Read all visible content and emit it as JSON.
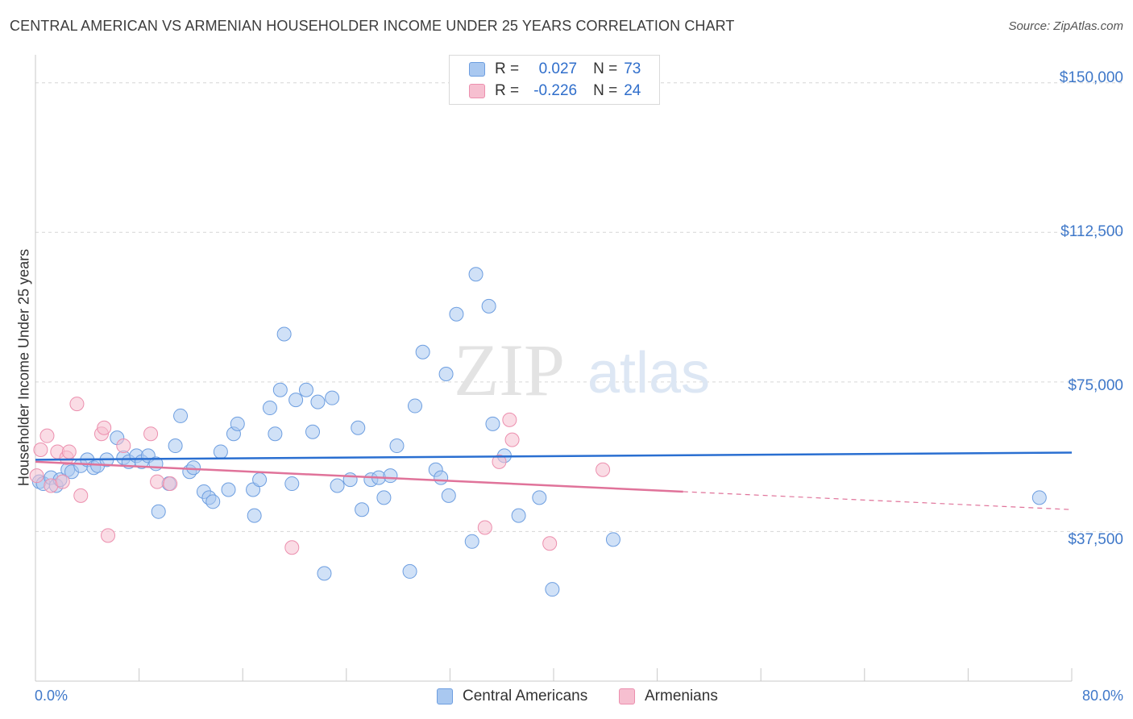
{
  "header": {
    "title": "CENTRAL AMERICAN VS ARMENIAN HOUSEHOLDER INCOME UNDER 25 YEARS CORRELATION CHART",
    "source": "Source: ZipAtlas.com"
  },
  "watermark": {
    "zip": "ZIP",
    "atlas": "atlas"
  },
  "legend": {
    "series": [
      {
        "r_label": "R =",
        "r_value": "0.027",
        "n_label": "N =",
        "n_value": "73"
      },
      {
        "r_label": "R =",
        "r_value": "-0.226",
        "n_label": "N =",
        "n_value": "24"
      }
    ]
  },
  "bottom_legend": {
    "central": "Central Americans",
    "armenian": "Armenians"
  },
  "colors": {
    "central_fill": "#a9c8f0",
    "central_stroke": "#6d9ee0",
    "central_line": "#2a6fd1",
    "armenian_fill": "#f6bfd0",
    "armenian_stroke": "#ec8fae",
    "armenian_line": "#e0739a",
    "axis_text": "#3f78c9",
    "grid": "#d6d6d6"
  },
  "chart_data": {
    "type": "scatter",
    "title": "CENTRAL AMERICAN VS ARMENIAN HOUSEHOLDER INCOME UNDER 25 YEARS CORRELATION CHART",
    "xlabel": "",
    "ylabel": "Householder Income Under 25 years",
    "xlim": [
      0,
      80
    ],
    "ylim": [
      0,
      155000
    ],
    "x_tick_labels": [
      "0.0%",
      "80.0%"
    ],
    "y_ticks": [
      37500,
      75000,
      112500,
      150000
    ],
    "y_tick_labels": [
      "$37,500",
      "$75,000",
      "$112,500",
      "$150,000"
    ],
    "grid": true,
    "series": [
      {
        "name": "Central Americans",
        "points": [
          [
            0.3,
            50000
          ],
          [
            0.6,
            49500
          ],
          [
            1.2,
            51000
          ],
          [
            1.6,
            49000
          ],
          [
            1.9,
            50500
          ],
          [
            2.5,
            53000
          ],
          [
            2.8,
            52500
          ],
          [
            3.5,
            54000
          ],
          [
            4.0,
            55500
          ],
          [
            4.5,
            53500
          ],
          [
            4.8,
            54000
          ],
          [
            5.5,
            55500
          ],
          [
            6.3,
            61000
          ],
          [
            6.8,
            56000
          ],
          [
            7.2,
            55000
          ],
          [
            7.8,
            56500
          ],
          [
            8.2,
            55000
          ],
          [
            8.7,
            56500
          ],
          [
            9.3,
            54500
          ],
          [
            9.5,
            42500
          ],
          [
            10.3,
            49500
          ],
          [
            10.8,
            59000
          ],
          [
            11.2,
            66500
          ],
          [
            11.9,
            52500
          ],
          [
            12.2,
            53500
          ],
          [
            13.0,
            47500
          ],
          [
            13.4,
            46000
          ],
          [
            13.7,
            45000
          ],
          [
            14.3,
            57500
          ],
          [
            14.9,
            48000
          ],
          [
            15.3,
            62000
          ],
          [
            15.6,
            64500
          ],
          [
            16.8,
            48000
          ],
          [
            16.9,
            41500
          ],
          [
            17.3,
            50500
          ],
          [
            18.1,
            68500
          ],
          [
            18.5,
            62000
          ],
          [
            18.9,
            73000
          ],
          [
            19.2,
            87000
          ],
          [
            19.8,
            49500
          ],
          [
            20.1,
            70500
          ],
          [
            20.9,
            73000
          ],
          [
            21.4,
            62500
          ],
          [
            21.8,
            70000
          ],
          [
            22.3,
            27000
          ],
          [
            22.9,
            71000
          ],
          [
            23.3,
            49000
          ],
          [
            24.3,
            50500
          ],
          [
            24.9,
            63500
          ],
          [
            25.2,
            43000
          ],
          [
            25.9,
            50500
          ],
          [
            26.5,
            51000
          ],
          [
            26.9,
            46000
          ],
          [
            27.4,
            51500
          ],
          [
            27.9,
            59000
          ],
          [
            28.9,
            27500
          ],
          [
            29.3,
            69000
          ],
          [
            29.9,
            82500
          ],
          [
            30.9,
            53000
          ],
          [
            31.3,
            51000
          ],
          [
            31.7,
            77000
          ],
          [
            31.9,
            46500
          ],
          [
            32.5,
            92000
          ],
          [
            33.7,
            35000
          ],
          [
            34.0,
            102000
          ],
          [
            35.0,
            94000
          ],
          [
            35.3,
            64500
          ],
          [
            36.2,
            56500
          ],
          [
            37.3,
            41500
          ],
          [
            38.9,
            46000
          ],
          [
            39.9,
            23000
          ],
          [
            44.6,
            35500
          ],
          [
            77.5,
            46000
          ]
        ],
        "trend": {
          "from": [
            0,
            55500
          ],
          "to": [
            80,
            57300
          ]
        }
      },
      {
        "name": "Armenians",
        "points": [
          [
            0.1,
            51500
          ],
          [
            0.4,
            58000
          ],
          [
            0.9,
            61500
          ],
          [
            1.2,
            49000
          ],
          [
            1.7,
            57500
          ],
          [
            2.1,
            50000
          ],
          [
            2.4,
            56000
          ],
          [
            2.6,
            57500
          ],
          [
            3.2,
            69500
          ],
          [
            3.5,
            46500
          ],
          [
            5.1,
            62000
          ],
          [
            5.3,
            63500
          ],
          [
            5.6,
            36500
          ],
          [
            6.8,
            59000
          ],
          [
            8.9,
            62000
          ],
          [
            9.4,
            50000
          ],
          [
            10.4,
            49500
          ],
          [
            19.8,
            33500
          ],
          [
            34.7,
            38500
          ],
          [
            35.8,
            55000
          ],
          [
            36.6,
            65500
          ],
          [
            36.8,
            60500
          ],
          [
            39.7,
            34500
          ],
          [
            43.8,
            53000
          ]
        ],
        "trend": {
          "from": [
            0,
            55000
          ],
          "to": [
            50,
            47500
          ],
          "dashed_to": [
            80,
            43000
          ]
        }
      }
    ]
  }
}
